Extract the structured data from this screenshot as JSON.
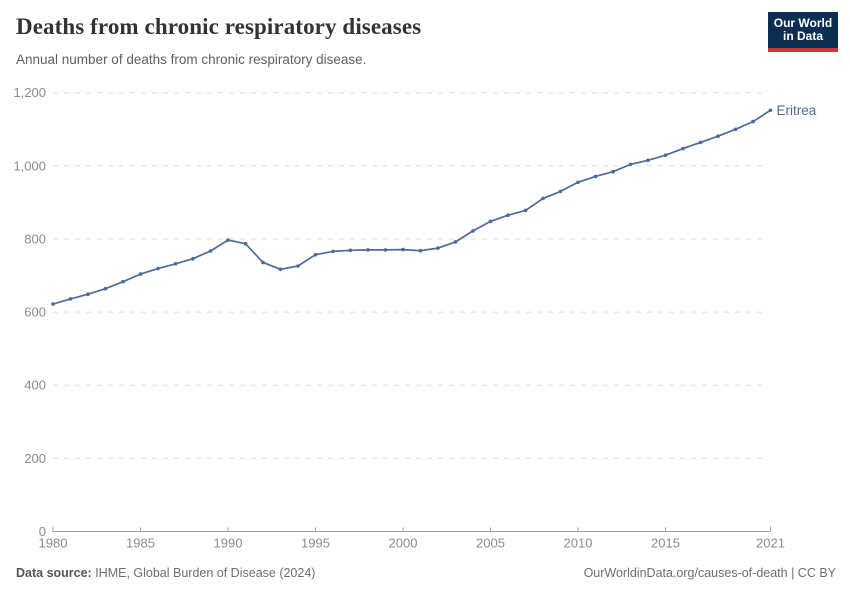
{
  "header": {
    "title": "Deaths from chronic respiratory diseases",
    "subtitle": "Annual number of deaths from chronic respiratory disease.",
    "logo": {
      "line1": "Our World",
      "line2": "in Data"
    }
  },
  "chart_data": {
    "type": "line",
    "title": "Deaths from chronic respiratory diseases",
    "subtitle": "Annual number of deaths from chronic respiratory disease.",
    "xlabel": "",
    "ylabel": "",
    "xlim": [
      1980,
      2021
    ],
    "ylim": [
      0,
      1200
    ],
    "xticks": [
      1980,
      1985,
      1990,
      1995,
      2000,
      2005,
      2010,
      2015,
      2021
    ],
    "yticks": [
      0,
      200,
      400,
      600,
      800,
      1000,
      1200
    ],
    "grid": "horizontal-dashed",
    "legend_position": "end-of-line-label",
    "series": [
      {
        "name": "Eritrea",
        "color": "#4c6a9c",
        "x": [
          1980,
          1981,
          1982,
          1983,
          1984,
          1985,
          1986,
          1987,
          1988,
          1989,
          1990,
          1991,
          1992,
          1993,
          1994,
          1995,
          1996,
          1997,
          1998,
          1999,
          2000,
          2001,
          2002,
          2003,
          2004,
          2005,
          2006,
          2007,
          2008,
          2009,
          2010,
          2011,
          2012,
          2013,
          2014,
          2015,
          2016,
          2017,
          2018,
          2019,
          2020,
          2021
        ],
        "values": [
          622,
          636,
          649,
          664,
          683,
          704,
          719,
          732,
          746,
          767,
          797,
          787,
          736,
          717,
          726,
          757,
          766,
          769,
          770,
          770,
          771,
          768,
          775,
          792,
          822,
          848,
          865,
          878,
          911,
          930,
          955,
          971,
          984,
          1004,
          1015,
          1029,
          1047,
          1064,
          1081,
          1100,
          1121,
          1152
        ]
      }
    ]
  },
  "footer": {
    "source_label": "Data source:",
    "source_text": " IHME, Global Burden of Disease (2024)",
    "link_text": "OurWorldinData.org/causes-of-death | CC BY"
  },
  "colors": {
    "line": "#4c6a9c",
    "grid": "#dddddd",
    "axis": "#a1a1a1",
    "tick_label": "#8c8c8c",
    "title": "#333333",
    "subtitle": "#616161",
    "logo_bg": "#0c2e51",
    "logo_bar": "#cf3732"
  }
}
